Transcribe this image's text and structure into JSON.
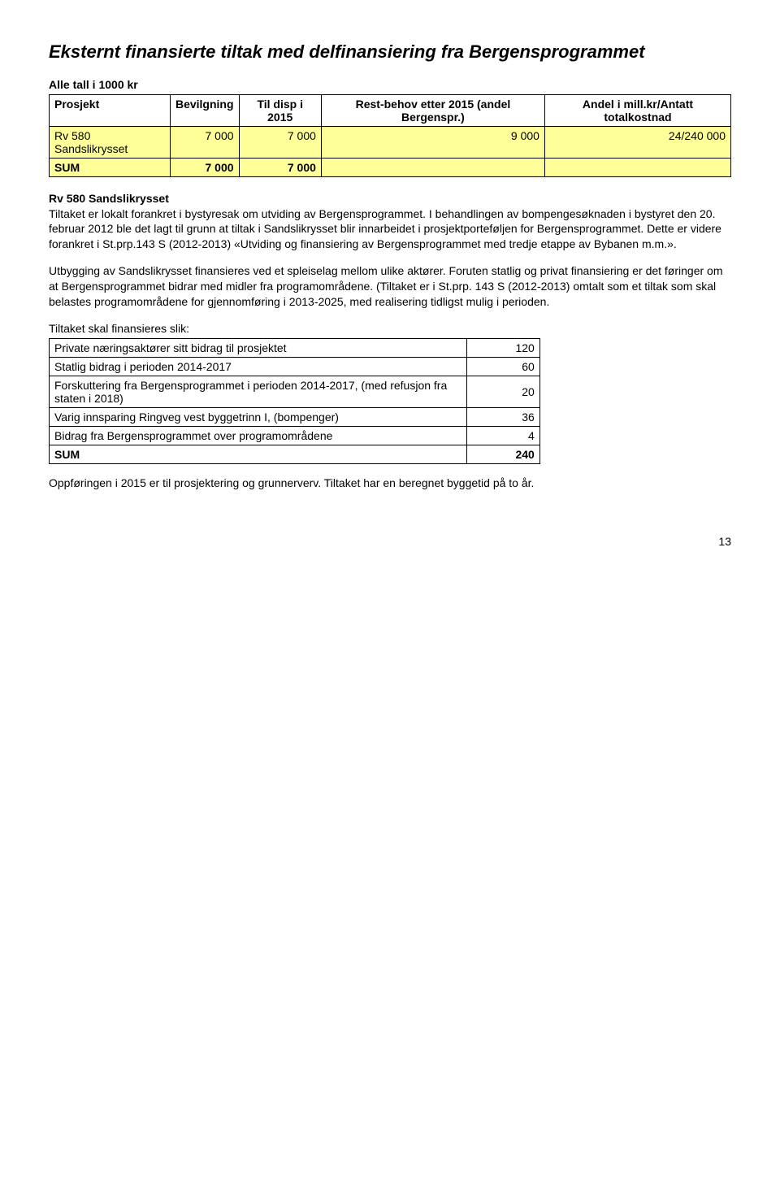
{
  "heading": "Eksternt finansierte tiltak med delfinansiering fra Bergensprogrammet",
  "table1": {
    "caption": "Alle tall i 1000 kr",
    "headers": [
      "Prosjekt",
      "Bevilgning",
      "Til disp i 2015",
      "Rest-behov etter 2015 (andel Bergenspr.)",
      "Andel i mill.kr/Antatt totalkostnad"
    ],
    "row": {
      "label": "Rv 580 Sandslikrysset",
      "c1": "7 000",
      "c2": "7 000",
      "c3": "9 000",
      "c4": "24/240 000"
    },
    "sum": {
      "label": "SUM",
      "c1": "7 000",
      "c2": "7 000",
      "c3": "",
      "c4": ""
    }
  },
  "section_heading": "Rv 580 Sandslikrysset",
  "para1": "Tiltaket er lokalt forankret i bystyresak om utviding av Bergensprogrammet. I behandlingen av bompengesøknaden i bystyret den 20. februar 2012 ble det lagt til grunn at tiltak i Sandslikrysset blir innarbeidet i prosjektporteføljen for Bergensprogrammet. Dette er videre forankret i St.prp.143 S (2012-2013) «Utviding og finansiering av Bergensprogrammet med tredje etappe av Bybanen m.m.».",
  "para2": "Utbygging av Sandslikrysset finansieres ved et spleiselag mellom ulike aktører. Foruten statlig og privat finansiering er det føringer om at Bergensprogrammet bidrar med midler fra programområdene. (Tiltaket er i St.prp. 143 S (2012-2013) omtalt som et tiltak som skal belastes programområdene for gjennomføring i 2013-2025, med realisering tidligst mulig i perioden.",
  "finance_caption": "Tiltaket skal finansieres slik:",
  "finance": {
    "rows": [
      {
        "label": "Private næringsaktører sitt bidrag til prosjektet",
        "val": "120"
      },
      {
        "label": "Statlig bidrag i perioden 2014-2017",
        "val": "60"
      },
      {
        "label": "Forskuttering fra Bergensprogrammet i perioden 2014-2017, (med refusjon fra staten i 2018)",
        "val": "20"
      },
      {
        "label": "Varig innsparing Ringveg vest byggetrinn I, (bompenger)",
        "val": "36"
      },
      {
        "label": "Bidrag fra Bergensprogrammet over programområdene",
        "val": "4"
      }
    ],
    "sum": {
      "label": "SUM",
      "val": "240"
    }
  },
  "closing": "Oppføringen i 2015 er til prosjektering og grunnerverv. Tiltaket har en beregnet byggetid på to år.",
  "page_number": "13",
  "colors": {
    "row_highlight": "#ffff99",
    "text": "#000000",
    "background": "#ffffff",
    "border": "#000000"
  }
}
